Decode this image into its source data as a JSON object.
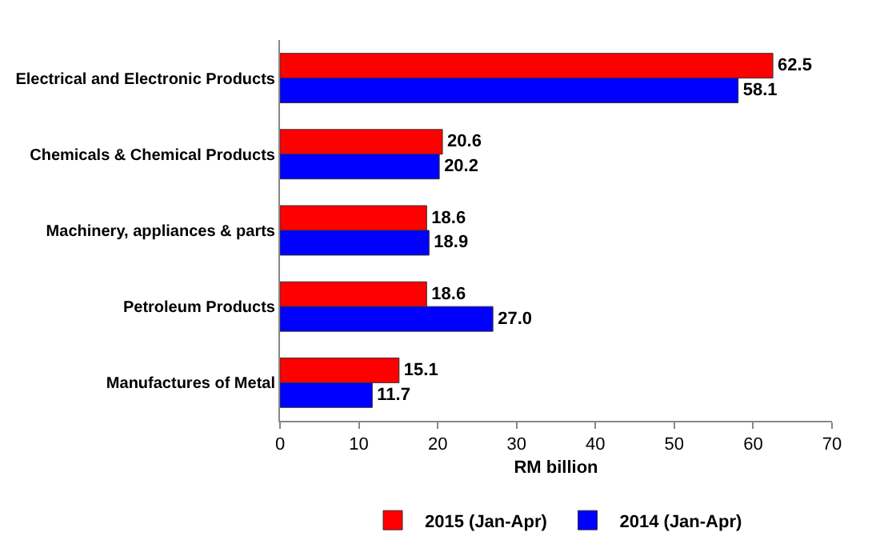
{
  "chart_data": {
    "type": "bar",
    "orientation": "horizontal",
    "xlabel": "RM billion",
    "categories": [
      "Electrical and Electronic Products",
      "Chemicals & Chemical Products",
      "Machinery, appliances & parts",
      "Petroleum Products",
      "Manufactures of Metal"
    ],
    "series": [
      {
        "name": "2015 (Jan-Apr)",
        "color": "#ff0000",
        "values": [
          62.5,
          20.6,
          18.6,
          18.6,
          15.1
        ],
        "value_labels": [
          "62.5",
          "20.6",
          "18.6",
          "18.6",
          "15.1"
        ]
      },
      {
        "name": "2014 (Jan-Apr)",
        "color": "#0000ff",
        "values": [
          58.1,
          20.2,
          18.9,
          27.0,
          11.7
        ],
        "value_labels": [
          "58.1",
          "20.2",
          "18.9",
          "27.0",
          "11.7"
        ]
      }
    ],
    "xlim": [
      0,
      70
    ],
    "xticks": [
      0,
      10,
      20,
      30,
      40,
      50,
      60,
      70
    ],
    "grid": false,
    "legend": "bottom"
  }
}
